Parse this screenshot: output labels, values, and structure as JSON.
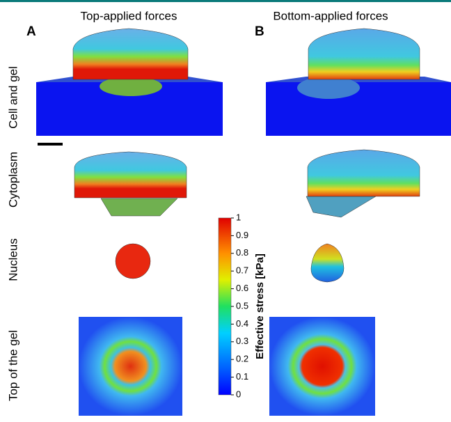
{
  "columns": [
    {
      "panel": "A",
      "title": "Top-applied forces"
    },
    {
      "panel": "B",
      "title": "Bottom-applied forces"
    }
  ],
  "rows": [
    "Cell and gel",
    "Cytoplasm",
    "Nucleus",
    "Top of the gel"
  ],
  "colorbar": {
    "label": "Effective stress [kPa]",
    "lim": [
      0,
      1
    ],
    "ticks": [
      0,
      0.1,
      0.2,
      0.3,
      0.4,
      0.5,
      0.6,
      0.7,
      0.8,
      0.9,
      1
    ]
  }
}
